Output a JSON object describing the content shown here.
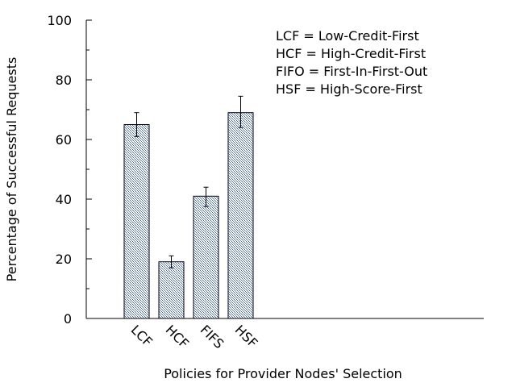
{
  "chart_data": {
    "type": "bar",
    "categories": [
      "LCF",
      "HCF",
      "FIFS",
      "HSF"
    ],
    "values": [
      65,
      19,
      41,
      69
    ],
    "errors": [
      [
        61,
        69
      ],
      [
        17,
        21
      ],
      [
        37.5,
        44
      ],
      [
        64,
        74.5
      ]
    ],
    "xlabel": "Policies for Provider Nodes' Selection",
    "ylabel": "Percentage of Successful Requests",
    "ylim": [
      0,
      100
    ],
    "yticks": [
      0,
      20,
      40,
      60,
      80,
      100
    ],
    "legend_placement": "top-right",
    "legend_lines": [
      "LCF = Low-Credit-First",
      "HCF = High-Credit-First",
      "FIFO = First-In-First-Out",
      "HSF = High-Score-First"
    ],
    "bar_color": "#3f5faf",
    "grid": false
  }
}
